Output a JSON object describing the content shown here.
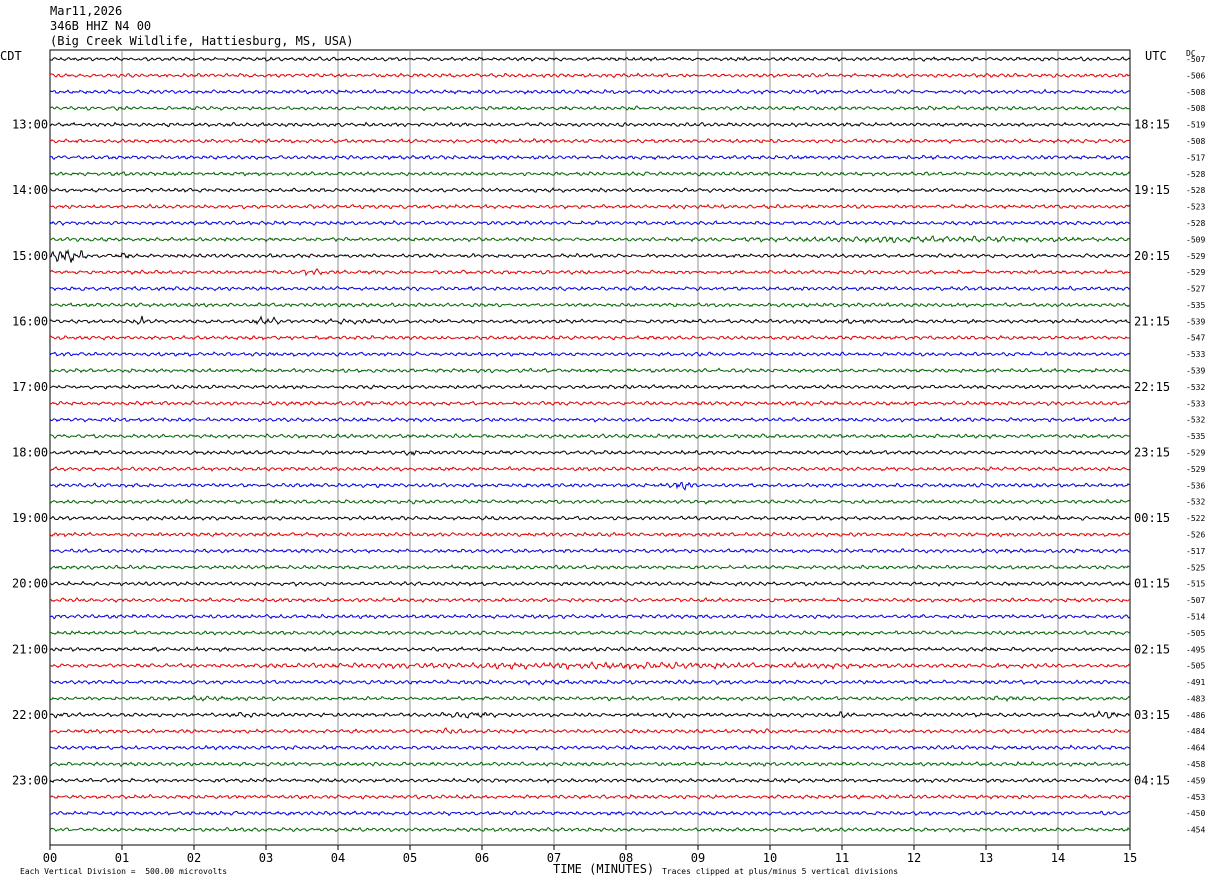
{
  "header": {
    "date": "Mar11,2026",
    "station": "346B HHZ N4 00",
    "location": "(Big Creek Wildlife, Hattiesburg, MS, USA)"
  },
  "labels": {
    "left_tz": "CDT",
    "right_tz": "UTC",
    "dc_label": "DC",
    "xlabel": "TIME (MINUTES)",
    "scale_note": "Each Vertical Division =  500.00 microvolts",
    "clip_note": "Traces clipped at plus/minus 5 vertical divisions"
  },
  "chart_data": {
    "type": "line",
    "title": "Mar11,2026 346B HHZ N4 00 (Big Creek Wildlife, Hattiesburg, MS, USA)",
    "xlabel": "TIME (MINUTES)",
    "xlim": [
      0,
      15
    ],
    "x_ticks": [
      "00",
      "01",
      "02",
      "03",
      "04",
      "05",
      "06",
      "07",
      "08",
      "09",
      "10",
      "11",
      "12",
      "13",
      "14",
      "15"
    ],
    "trace_count": 48,
    "trace_minutes": 15,
    "trace_colors": [
      "#000000",
      "#e00000",
      "#0000e0",
      "#006400"
    ],
    "hour_labels_cdt": [
      "13:00",
      "14:00",
      "15:00",
      "16:00",
      "17:00",
      "18:00",
      "19:00",
      "20:00",
      "21:00",
      "22:00",
      "23:00"
    ],
    "hour_labels_utc": [
      "18:15",
      "19:15",
      "20:15",
      "21:15",
      "22:15",
      "23:15",
      "00:15",
      "01:15",
      "02:15",
      "03:15",
      "04:15"
    ],
    "first_labeled_trace": 4,
    "dc_offsets": [
      -507,
      -506,
      -508,
      -508,
      -519,
      -508,
      -517,
      -528,
      -528,
      -523,
      -528,
      -509,
      -529,
      -529,
      -527,
      -535,
      -539,
      -547,
      -533,
      -539,
      -532,
      -533,
      -532,
      -535,
      -529,
      -529,
      -536,
      -532,
      -522,
      -526,
      -517,
      -525,
      -515,
      -507,
      -514,
      -505,
      -495,
      -505,
      -491,
      -483,
      -486,
      -484,
      -464,
      -458,
      -459,
      -453,
      -450,
      -454
    ],
    "events": [
      {
        "trace": 11,
        "from": 9.0,
        "to": 15.0,
        "amp": 3.0
      },
      {
        "trace": 12,
        "from": 0.0,
        "to": 0.5,
        "amp": 7.0
      },
      {
        "trace": 12,
        "from": 0.95,
        "to": 1.15,
        "amp": 4.0
      },
      {
        "trace": 12,
        "from": 5.8,
        "to": 6.2,
        "amp": 2.5
      },
      {
        "trace": 13,
        "from": 3.5,
        "to": 3.8,
        "amp": 4.0
      },
      {
        "trace": 13,
        "from": 6.5,
        "to": 7.2,
        "amp": 2.0
      },
      {
        "trace": 16,
        "from": 1.15,
        "to": 1.4,
        "amp": 4.0
      },
      {
        "trace": 16,
        "from": 2.8,
        "to": 3.2,
        "amp": 5.0
      },
      {
        "trace": 16,
        "from": 3.2,
        "to": 5.0,
        "amp": 2.5
      },
      {
        "trace": 16,
        "from": 7.8,
        "to": 8.2,
        "amp": 2.0
      },
      {
        "trace": 16,
        "from": 10.8,
        "to": 11.6,
        "amp": 2.5
      },
      {
        "trace": 24,
        "from": 4.9,
        "to": 5.1,
        "amp": 4.0
      },
      {
        "trace": 26,
        "from": 8.5,
        "to": 9.0,
        "amp": 4.0
      },
      {
        "trace": 32,
        "from": 5.3,
        "to": 5.4,
        "amp": 2.5
      },
      {
        "trace": 37,
        "from": 1.0,
        "to": 15.0,
        "amp": 3.0
      },
      {
        "trace": 38,
        "from": 0.0,
        "to": 15.0,
        "amp": 2.0
      },
      {
        "trace": 39,
        "from": 1.2,
        "to": 3.0,
        "amp": 2.5
      },
      {
        "trace": 39,
        "from": 8.0,
        "to": 9.0,
        "amp": 2.5
      },
      {
        "trace": 39,
        "from": 13.0,
        "to": 13.5,
        "amp": 3.0
      },
      {
        "trace": 40,
        "from": 0.0,
        "to": 0.3,
        "amp": 3.0
      },
      {
        "trace": 40,
        "from": 2.5,
        "to": 3.0,
        "amp": 3.0
      },
      {
        "trace": 40,
        "from": 5.4,
        "to": 6.2,
        "amp": 3.5
      },
      {
        "trace": 40,
        "from": 8.5,
        "to": 9.0,
        "amp": 3.0
      },
      {
        "trace": 40,
        "from": 10.8,
        "to": 11.2,
        "amp": 3.0
      },
      {
        "trace": 40,
        "from": 14.4,
        "to": 14.9,
        "amp": 4.0
      },
      {
        "trace": 41,
        "from": 5.0,
        "to": 6.0,
        "amp": 2.5
      },
      {
        "trace": 41,
        "from": 9.5,
        "to": 10.5,
        "amp": 2.0
      }
    ]
  }
}
